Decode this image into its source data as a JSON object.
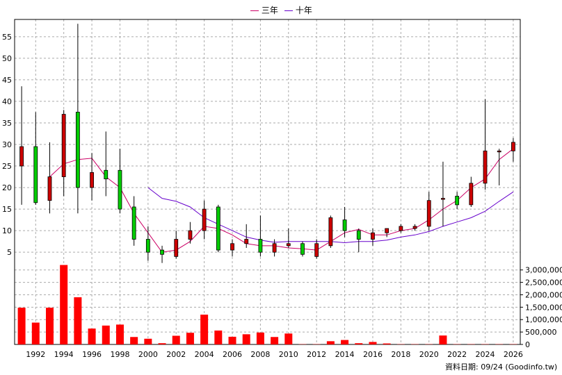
{
  "legend": [
    {
      "label": "三年",
      "color": "#cc0066"
    },
    {
      "label": "十年",
      "color": "#6600cc"
    }
  ],
  "source_label": "資料日期: 09/24  (Goodinfo.tw)",
  "colors": {
    "up": "#cc0000",
    "down": "#00cc00",
    "volume": "#ff0000"
  },
  "chart_data": [
    {
      "type": "candlestick",
      "title": "",
      "ylim": [
        1,
        59
      ],
      "yticks": [
        5,
        10,
        15,
        20,
        25,
        30,
        35,
        40,
        45,
        50,
        55
      ],
      "xlim": [
        1990.5,
        2026.5
      ],
      "xticks": [
        1992,
        1994,
        1996,
        1998,
        2000,
        2002,
        2004,
        2006,
        2008,
        2010,
        2012,
        2014,
        2016,
        2018,
        2020,
        2022,
        2024,
        2026
      ],
      "grid": true,
      "candles": [
        {
          "year": 1991,
          "open": 25,
          "close": 29.5,
          "high": 43.5,
          "low": 16
        },
        {
          "year": 1992,
          "open": 29.5,
          "close": 16.5,
          "high": 37.5,
          "low": 16
        },
        {
          "year": 1993,
          "open": 17,
          "close": 22.5,
          "high": 30.5,
          "low": 14
        },
        {
          "year": 1994,
          "open": 22.5,
          "close": 37,
          "high": 38,
          "low": 18
        },
        {
          "year": 1995,
          "open": 37.5,
          "close": 20,
          "high": 58,
          "low": 14
        },
        {
          "year": 1996,
          "open": 20,
          "close": 23.5,
          "high": 28,
          "low": 17
        },
        {
          "year": 1997,
          "open": 24,
          "close": 22,
          "high": 33,
          "low": 18
        },
        {
          "year": 1998,
          "open": 24,
          "close": 15,
          "high": 29,
          "low": 14
        },
        {
          "year": 1999,
          "open": 15.5,
          "close": 8,
          "high": 18,
          "low": 6.5
        },
        {
          "year": 2000,
          "open": 8,
          "close": 5,
          "high": 11,
          "low": 3
        },
        {
          "year": 2001,
          "open": 5.5,
          "close": 4.5,
          "high": 6.5,
          "low": 2.5
        },
        {
          "year": 2002,
          "open": 4,
          "close": 8,
          "high": 10,
          "low": 3.5
        },
        {
          "year": 2003,
          "open": 8,
          "close": 10,
          "high": 12,
          "low": 7
        },
        {
          "year": 2004,
          "open": 10,
          "close": 15,
          "high": 17,
          "low": 8
        },
        {
          "year": 2005,
          "open": 15.5,
          "close": 5.5,
          "high": 16,
          "low": 5
        },
        {
          "year": 2006,
          "open": 5.5,
          "close": 7,
          "high": 8,
          "low": 4
        },
        {
          "year": 2007,
          "open": 7,
          "close": 8,
          "high": 11.5,
          "low": 6
        },
        {
          "year": 2008,
          "open": 8,
          "close": 5,
          "high": 13.5,
          "low": 4
        },
        {
          "year": 2009,
          "open": 5,
          "close": 7,
          "high": 8,
          "low": 4
        },
        {
          "year": 2010,
          "open": 6.5,
          "close": 7,
          "high": 10.5,
          "low": 6
        },
        {
          "year": 2011,
          "open": 7,
          "close": 4.5,
          "high": 7.5,
          "low": 4
        },
        {
          "year": 2012,
          "open": 4,
          "close": 7,
          "high": 8,
          "low": 3.5
        },
        {
          "year": 2013,
          "open": 6.5,
          "close": 13,
          "high": 13.5,
          "low": 6
        },
        {
          "year": 2014,
          "open": 12.5,
          "close": 10,
          "high": 15.5,
          "low": 8.5
        },
        {
          "year": 2015,
          "open": 10,
          "close": 8,
          "high": 10.5,
          "low": 5
        },
        {
          "year": 2016,
          "open": 8,
          "close": 9.5,
          "high": 10.5,
          "low": 6.5
        },
        {
          "year": 2017,
          "open": 9.5,
          "close": 10.5,
          "high": 10.5,
          "low": 8.5
        },
        {
          "year": 2018,
          "open": 10,
          "close": 11,
          "high": 11.5,
          "low": 9.5
        },
        {
          "year": 2019,
          "open": 10.5,
          "close": 11,
          "high": 11.5,
          "low": 10
        },
        {
          "year": 2020,
          "open": 11,
          "close": 17,
          "high": 19,
          "low": 10
        },
        {
          "year": 2021,
          "open": 17.5,
          "close": 17.5,
          "high": 26,
          "low": 11
        },
        {
          "year": 2022,
          "open": 18,
          "close": 16,
          "high": 19,
          "low": 15
        },
        {
          "year": 2023,
          "open": 16,
          "close": 21,
          "high": 22.5,
          "low": 15.5
        },
        {
          "year": 2024,
          "open": 21,
          "close": 28.5,
          "high": 40.5,
          "low": 19.5
        },
        {
          "year": 2025,
          "open": 28.5,
          "close": 28.5,
          "high": 29,
          "low": 20.5
        },
        {
          "year": 2026,
          "open": 28.5,
          "close": 30.5,
          "high": 31.5,
          "low": 26
        }
      ],
      "series": [
        {
          "name": "三年",
          "x": [
            1993,
            1994,
            1995,
            1996,
            1997,
            1998,
            1999,
            2000,
            2001,
            2002,
            2003,
            2004,
            2005,
            2006,
            2007,
            2008,
            2009,
            2010,
            2011,
            2012,
            2013,
            2014,
            2015,
            2016,
            2017,
            2018,
            2019,
            2020,
            2021,
            2022,
            2023,
            2024,
            2025,
            2026
          ],
          "values": [
            22.5,
            25.5,
            26.5,
            26.8,
            22.5,
            20,
            14,
            9.5,
            5,
            5.5,
            7.5,
            11,
            10.5,
            9,
            7,
            6.5,
            6.5,
            6,
            5.8,
            5.5,
            7.5,
            9.5,
            10.3,
            9,
            9,
            10,
            10.5,
            12.5,
            15,
            17,
            20,
            22,
            26.5,
            29
          ]
        },
        {
          "name": "十年",
          "x": [
            2000,
            2001,
            2002,
            2003,
            2004,
            2005,
            2006,
            2007,
            2008,
            2009,
            2010,
            2011,
            2012,
            2013,
            2014,
            2015,
            2016,
            2017,
            2018,
            2019,
            2020,
            2021,
            2022,
            2023,
            2024,
            2025,
            2026
          ],
          "values": [
            20,
            17.5,
            16.8,
            15.5,
            13,
            11.5,
            10,
            8.5,
            7.8,
            7.3,
            7.5,
            7.5,
            7.5,
            7.5,
            7.2,
            7.5,
            7.5,
            7.8,
            8.5,
            9,
            9.8,
            11,
            12,
            13,
            14.5,
            16.8,
            19
          ]
        }
      ]
    },
    {
      "type": "bar",
      "title": "",
      "ylim": [
        0,
        3300000
      ],
      "yticks": [
        0,
        500000,
        1000000,
        1500000,
        2000000,
        2500000,
        3000000
      ],
      "ytick_labels": [
        "0",
        "500,000",
        "1,000,000",
        "1,500,000",
        "2,000,000",
        "2,500,000",
        "3,000,000"
      ],
      "categories": [
        1991,
        1992,
        1993,
        1994,
        1995,
        1996,
        1997,
        1998,
        1999,
        2000,
        2001,
        2002,
        2003,
        2004,
        2005,
        2006,
        2007,
        2008,
        2009,
        2010,
        2011,
        2012,
        2013,
        2014,
        2015,
        2016,
        2017,
        2018,
        2019,
        2020,
        2021,
        2022,
        2023,
        2024,
        2025,
        2026
      ],
      "values": [
        1480000,
        880000,
        1480000,
        3200000,
        1900000,
        640000,
        760000,
        800000,
        300000,
        230000,
        50000,
        350000,
        470000,
        1200000,
        560000,
        310000,
        410000,
        480000,
        300000,
        440000,
        10000,
        10000,
        130000,
        180000,
        50000,
        100000,
        40000,
        10000,
        10000,
        10000,
        360000,
        10000,
        10000,
        10000,
        10000,
        10000
      ]
    }
  ]
}
